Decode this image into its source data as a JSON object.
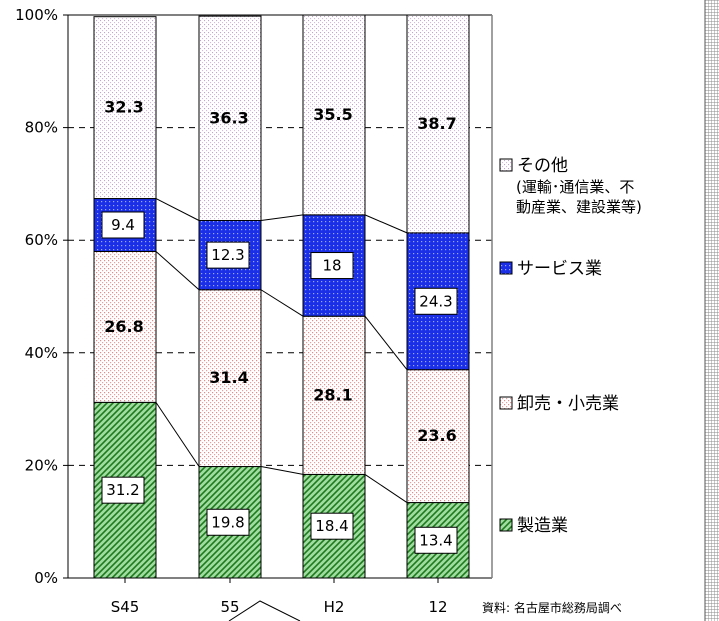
{
  "chart_data": {
    "type": "bar",
    "stacked": true,
    "categories": [
      "S45",
      "55",
      "H2",
      "12"
    ],
    "ylim": [
      0,
      100
    ],
    "yticks": [
      "0%",
      "20%",
      "40%",
      "60%",
      "80%",
      "100%"
    ],
    "grid": true,
    "legend_position": "right",
    "source": "資料: 名古屋市総務局調べ",
    "series": [
      {
        "name": "製造業",
        "values": [
          31.2,
          19.8,
          18.4,
          13.4
        ],
        "color": "#3a9a3a",
        "label_style": "box"
      },
      {
        "name": "卸売・小売業",
        "values": [
          26.8,
          31.4,
          28.1,
          23.6
        ],
        "color": "#f4dede",
        "label_style": "bold"
      },
      {
        "name": "サービス業",
        "values": [
          9.4,
          12.3,
          18.0,
          24.3
        ],
        "color": "#1530d8",
        "label_style": "box"
      },
      {
        "name": "その他",
        "name_detail_1": "(運輸･通信業、不",
        "name_detail_2": "動産業、建設業等)",
        "values": [
          32.3,
          36.3,
          35.5,
          38.7
        ],
        "color": "#f0e6f0",
        "label_style": "bold"
      }
    ]
  }
}
